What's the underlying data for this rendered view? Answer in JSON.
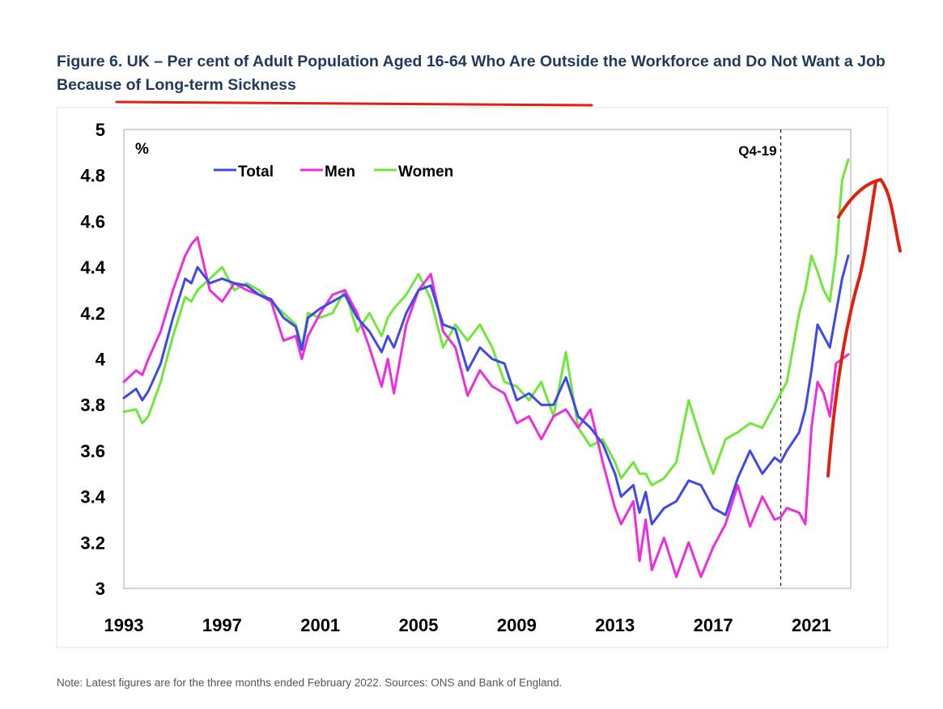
{
  "header": {
    "title": "Figure 6. UK – Per cent of Adult Population Aged 16-64 Who Are Outside the Workforce and Do Not Want a Job Because of Long-term Sickness"
  },
  "footer": {
    "note": "Note: Latest figures are for the three months ended February 2022. Sources: ONS and Bank of England."
  },
  "colors": {
    "title": "#1f3a5c",
    "total": "#3f48e8",
    "men": "#ee2ce0",
    "women": "#6fe83a",
    "annotation_red": "#e0210f"
  },
  "chart_data": {
    "type": "line",
    "title": "Figure 6. UK – Per cent of Adult Population Aged 16-64 Who Are Outside the Workforce and Do Not Want a Job Because of Long-term Sickness",
    "unit_label": "%",
    "xlabel": "",
    "ylabel": "",
    "ylim": [
      3,
      5
    ],
    "yticks": [
      "5",
      "4.8",
      "4.6",
      "4.4",
      "4.2",
      "4",
      "3.8",
      "3.6",
      "3.4",
      "3.2",
      "3"
    ],
    "xlim": [
      1993,
      2022.6
    ],
    "xticks": [
      "1993",
      "1997",
      "2001",
      "2005",
      "2009",
      "2013",
      "2017",
      "2021"
    ],
    "legend": [
      "Total",
      "Men",
      "Women"
    ],
    "legend_position": "top-left",
    "vline": {
      "x": 2019.75,
      "label": "Q4-19"
    },
    "series": [
      {
        "name": "Total",
        "points": [
          [
            1993.0,
            3.83
          ],
          [
            1993.5,
            3.87
          ],
          [
            1993.75,
            3.82
          ],
          [
            1994.0,
            3.86
          ],
          [
            1994.5,
            3.98
          ],
          [
            1995.0,
            4.18
          ],
          [
            1995.5,
            4.35
          ],
          [
            1995.75,
            4.33
          ],
          [
            1996.0,
            4.4
          ],
          [
            1996.5,
            4.33
          ],
          [
            1997.0,
            4.35
          ],
          [
            1997.5,
            4.33
          ],
          [
            1998.0,
            4.32
          ],
          [
            1998.5,
            4.28
          ],
          [
            1999.0,
            4.26
          ],
          [
            1999.5,
            4.18
          ],
          [
            2000.0,
            4.14
          ],
          [
            2000.25,
            4.04
          ],
          [
            2000.5,
            4.18
          ],
          [
            2001.0,
            4.22
          ],
          [
            2001.5,
            4.25
          ],
          [
            2002.0,
            4.28
          ],
          [
            2002.5,
            4.18
          ],
          [
            2003.0,
            4.12
          ],
          [
            2003.5,
            4.03
          ],
          [
            2003.75,
            4.1
          ],
          [
            2004.0,
            4.05
          ],
          [
            2004.5,
            4.2
          ],
          [
            2005.0,
            4.3
          ],
          [
            2005.5,
            4.32
          ],
          [
            2006.0,
            4.15
          ],
          [
            2006.5,
            4.13
          ],
          [
            2007.0,
            3.95
          ],
          [
            2007.5,
            4.05
          ],
          [
            2008.0,
            4.0
          ],
          [
            2008.5,
            3.98
          ],
          [
            2009.0,
            3.82
          ],
          [
            2009.5,
            3.85
          ],
          [
            2010.0,
            3.8
          ],
          [
            2010.5,
            3.8
          ],
          [
            2011.0,
            3.92
          ],
          [
            2011.5,
            3.75
          ],
          [
            2012.0,
            3.7
          ],
          [
            2012.5,
            3.63
          ],
          [
            2013.0,
            3.5
          ],
          [
            2013.25,
            3.4
          ],
          [
            2013.75,
            3.45
          ],
          [
            2014.0,
            3.33
          ],
          [
            2014.25,
            3.42
          ],
          [
            2014.5,
            3.28
          ],
          [
            2015.0,
            3.35
          ],
          [
            2015.5,
            3.38
          ],
          [
            2016.0,
            3.47
          ],
          [
            2016.5,
            3.45
          ],
          [
            2017.0,
            3.35
          ],
          [
            2017.5,
            3.32
          ],
          [
            2018.0,
            3.48
          ],
          [
            2018.5,
            3.6
          ],
          [
            2019.0,
            3.5
          ],
          [
            2019.5,
            3.57
          ],
          [
            2019.75,
            3.55
          ],
          [
            2020.0,
            3.6
          ],
          [
            2020.5,
            3.68
          ],
          [
            2020.75,
            3.78
          ],
          [
            2021.0,
            3.95
          ],
          [
            2021.25,
            4.15
          ],
          [
            2021.5,
            4.1
          ],
          [
            2021.75,
            4.05
          ],
          [
            2022.0,
            4.2
          ],
          [
            2022.25,
            4.35
          ],
          [
            2022.5,
            4.45
          ]
        ]
      },
      {
        "name": "Men",
        "points": [
          [
            1993.0,
            3.9
          ],
          [
            1993.5,
            3.95
          ],
          [
            1993.75,
            3.93
          ],
          [
            1994.0,
            4.0
          ],
          [
            1994.5,
            4.12
          ],
          [
            1995.0,
            4.3
          ],
          [
            1995.5,
            4.45
          ],
          [
            1995.75,
            4.5
          ],
          [
            1996.0,
            4.53
          ],
          [
            1996.5,
            4.3
          ],
          [
            1997.0,
            4.25
          ],
          [
            1997.5,
            4.33
          ],
          [
            1998.0,
            4.3
          ],
          [
            1998.5,
            4.28
          ],
          [
            1999.0,
            4.25
          ],
          [
            1999.5,
            4.08
          ],
          [
            2000.0,
            4.1
          ],
          [
            2000.25,
            4.0
          ],
          [
            2000.5,
            4.1
          ],
          [
            2001.0,
            4.2
          ],
          [
            2001.5,
            4.28
          ],
          [
            2002.0,
            4.3
          ],
          [
            2002.5,
            4.2
          ],
          [
            2003.0,
            4.05
          ],
          [
            2003.5,
            3.88
          ],
          [
            2003.75,
            4.0
          ],
          [
            2004.0,
            3.85
          ],
          [
            2004.5,
            4.15
          ],
          [
            2005.0,
            4.3
          ],
          [
            2005.5,
            4.37
          ],
          [
            2006.0,
            4.12
          ],
          [
            2006.5,
            4.05
          ],
          [
            2007.0,
            3.84
          ],
          [
            2007.5,
            3.95
          ],
          [
            2008.0,
            3.88
          ],
          [
            2008.5,
            3.85
          ],
          [
            2009.0,
            3.72
          ],
          [
            2009.5,
            3.75
          ],
          [
            2010.0,
            3.65
          ],
          [
            2010.5,
            3.75
          ],
          [
            2011.0,
            3.78
          ],
          [
            2011.5,
            3.7
          ],
          [
            2012.0,
            3.78
          ],
          [
            2012.5,
            3.55
          ],
          [
            2013.0,
            3.35
          ],
          [
            2013.25,
            3.28
          ],
          [
            2013.75,
            3.38
          ],
          [
            2014.0,
            3.12
          ],
          [
            2014.25,
            3.3
          ],
          [
            2014.5,
            3.08
          ],
          [
            2015.0,
            3.22
          ],
          [
            2015.5,
            3.05
          ],
          [
            2016.0,
            3.2
          ],
          [
            2016.5,
            3.05
          ],
          [
            2017.0,
            3.18
          ],
          [
            2017.5,
            3.28
          ],
          [
            2018.0,
            3.45
          ],
          [
            2018.5,
            3.27
          ],
          [
            2019.0,
            3.4
          ],
          [
            2019.5,
            3.3
          ],
          [
            2019.75,
            3.31
          ],
          [
            2020.0,
            3.35
          ],
          [
            2020.5,
            3.33
          ],
          [
            2020.75,
            3.28
          ],
          [
            2021.0,
            3.7
          ],
          [
            2021.25,
            3.9
          ],
          [
            2021.5,
            3.85
          ],
          [
            2021.75,
            3.75
          ],
          [
            2022.0,
            3.98
          ],
          [
            2022.25,
            4.0
          ],
          [
            2022.5,
            4.02
          ]
        ]
      },
      {
        "name": "Women",
        "points": [
          [
            1993.0,
            3.77
          ],
          [
            1993.5,
            3.78
          ],
          [
            1993.75,
            3.72
          ],
          [
            1994.0,
            3.75
          ],
          [
            1994.5,
            3.9
          ],
          [
            1995.0,
            4.1
          ],
          [
            1995.5,
            4.27
          ],
          [
            1995.75,
            4.25
          ],
          [
            1996.0,
            4.3
          ],
          [
            1996.5,
            4.35
          ],
          [
            1997.0,
            4.4
          ],
          [
            1997.5,
            4.3
          ],
          [
            1998.0,
            4.33
          ],
          [
            1998.5,
            4.3
          ],
          [
            1999.0,
            4.25
          ],
          [
            1999.5,
            4.2
          ],
          [
            2000.0,
            4.15
          ],
          [
            2000.25,
            4.05
          ],
          [
            2000.5,
            4.2
          ],
          [
            2001.0,
            4.18
          ],
          [
            2001.5,
            4.2
          ],
          [
            2002.0,
            4.3
          ],
          [
            2002.5,
            4.12
          ],
          [
            2003.0,
            4.2
          ],
          [
            2003.5,
            4.1
          ],
          [
            2003.75,
            4.18
          ],
          [
            2004.0,
            4.22
          ],
          [
            2004.5,
            4.28
          ],
          [
            2005.0,
            4.37
          ],
          [
            2005.5,
            4.26
          ],
          [
            2006.0,
            4.05
          ],
          [
            2006.5,
            4.15
          ],
          [
            2007.0,
            4.08
          ],
          [
            2007.5,
            4.15
          ],
          [
            2008.0,
            4.05
          ],
          [
            2008.5,
            3.9
          ],
          [
            2009.0,
            3.88
          ],
          [
            2009.5,
            3.82
          ],
          [
            2010.0,
            3.9
          ],
          [
            2010.5,
            3.75
          ],
          [
            2011.0,
            4.03
          ],
          [
            2011.5,
            3.7
          ],
          [
            2012.0,
            3.62
          ],
          [
            2012.5,
            3.65
          ],
          [
            2013.0,
            3.55
          ],
          [
            2013.25,
            3.48
          ],
          [
            2013.75,
            3.55
          ],
          [
            2014.0,
            3.5
          ],
          [
            2014.25,
            3.5
          ],
          [
            2014.5,
            3.45
          ],
          [
            2015.0,
            3.48
          ],
          [
            2015.5,
            3.55
          ],
          [
            2016.0,
            3.82
          ],
          [
            2016.5,
            3.65
          ],
          [
            2017.0,
            3.5
          ],
          [
            2017.5,
            3.65
          ],
          [
            2018.0,
            3.68
          ],
          [
            2018.5,
            3.72
          ],
          [
            2019.0,
            3.7
          ],
          [
            2019.5,
            3.8
          ],
          [
            2019.75,
            3.85
          ],
          [
            2020.0,
            3.9
          ],
          [
            2020.5,
            4.2
          ],
          [
            2020.75,
            4.3
          ],
          [
            2021.0,
            4.45
          ],
          [
            2021.25,
            4.38
          ],
          [
            2021.5,
            4.3
          ],
          [
            2021.75,
            4.25
          ],
          [
            2022.0,
            4.45
          ],
          [
            2022.25,
            4.78
          ],
          [
            2022.5,
            4.87
          ]
        ]
      }
    ]
  }
}
